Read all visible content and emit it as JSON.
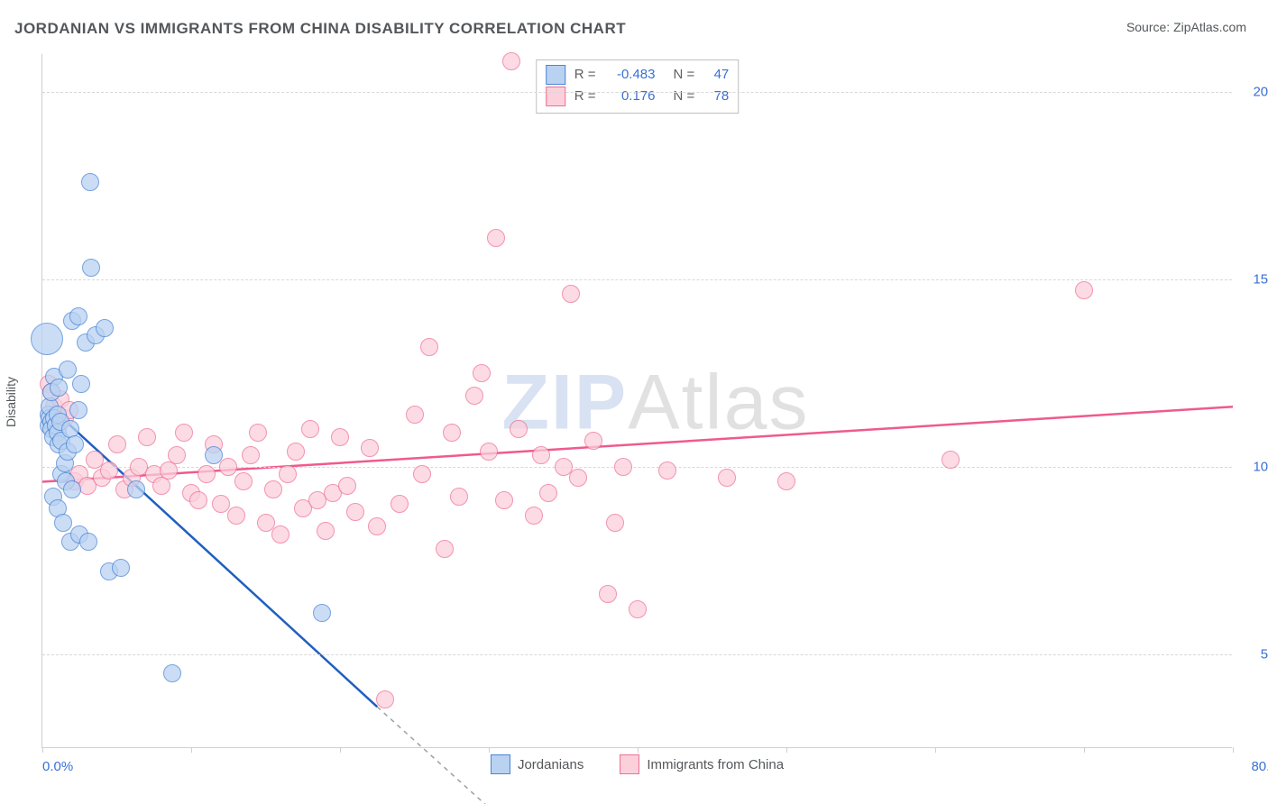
{
  "title": "JORDANIAN VS IMMIGRANTS FROM CHINA DISABILITY CORRELATION CHART",
  "source": "Source: ZipAtlas.com",
  "ylabel": "Disability",
  "watermark": {
    "logo": "ZIP",
    "suffix": "Atlas"
  },
  "axes": {
    "xlim": [
      0,
      80
    ],
    "ylim": [
      2.5,
      21
    ],
    "xtick_positions": [
      0,
      10,
      20,
      30,
      40,
      50,
      60,
      70,
      80
    ],
    "xtick_label_left": "0.0%",
    "xtick_label_right": "80.0%",
    "yticks": [
      {
        "v": 5,
        "label": "5.0%"
      },
      {
        "v": 10,
        "label": "10.0%"
      },
      {
        "v": 15,
        "label": "15.0%"
      },
      {
        "v": 20,
        "label": "20.0%"
      }
    ],
    "grid_color": "#d8d8d8",
    "axis_color": "#cfcfcf",
    "tick_font_color": "#3a6fd8"
  },
  "series": {
    "jordanians": {
      "label": "Jordanians",
      "color_fill": "#b9d2f2",
      "color_stroke": "#4a84d6",
      "color_line": "#1f5fbf",
      "opacity": 0.75,
      "marker_radius": 10,
      "R": "-0.483",
      "N": "47",
      "trend": {
        "x1": 0.5,
        "y1": 11.6,
        "x2": 22.5,
        "y2": 3.6
      },
      "trend_dash": {
        "x1": 22.5,
        "y1": 3.6,
        "x2": 32,
        "y2": 0.2
      },
      "points": [
        {
          "x": 0.3,
          "y": 13.4,
          "r": 18
        },
        {
          "x": 0.4,
          "y": 11.4
        },
        {
          "x": 0.4,
          "y": 11.1
        },
        {
          "x": 0.5,
          "y": 11.3
        },
        {
          "x": 0.6,
          "y": 11.2
        },
        {
          "x": 0.5,
          "y": 11.6
        },
        {
          "x": 0.6,
          "y": 11.0
        },
        {
          "x": 0.7,
          "y": 10.8
        },
        {
          "x": 0.8,
          "y": 11.3
        },
        {
          "x": 0.9,
          "y": 11.1
        },
        {
          "x": 1.0,
          "y": 10.9
        },
        {
          "x": 1.1,
          "y": 10.6
        },
        {
          "x": 1.0,
          "y": 11.4
        },
        {
          "x": 1.2,
          "y": 11.2
        },
        {
          "x": 1.3,
          "y": 10.7
        },
        {
          "x": 1.3,
          "y": 9.8
        },
        {
          "x": 1.5,
          "y": 10.1
        },
        {
          "x": 1.6,
          "y": 9.6
        },
        {
          "x": 1.7,
          "y": 10.4
        },
        {
          "x": 1.9,
          "y": 11.0
        },
        {
          "x": 2.0,
          "y": 9.4
        },
        {
          "x": 2.2,
          "y": 10.6
        },
        {
          "x": 2.4,
          "y": 11.5
        },
        {
          "x": 2.6,
          "y": 12.2
        },
        {
          "x": 2.9,
          "y": 13.3
        },
        {
          "x": 3.6,
          "y": 13.5
        },
        {
          "x": 4.2,
          "y": 13.7
        },
        {
          "x": 2.0,
          "y": 13.9
        },
        {
          "x": 2.4,
          "y": 14.0
        },
        {
          "x": 3.3,
          "y": 15.3
        },
        {
          "x": 3.2,
          "y": 17.6
        },
        {
          "x": 0.8,
          "y": 12.4
        },
        {
          "x": 0.6,
          "y": 12.0
        },
        {
          "x": 1.1,
          "y": 12.1
        },
        {
          "x": 1.7,
          "y": 12.6
        },
        {
          "x": 0.7,
          "y": 9.2
        },
        {
          "x": 1.0,
          "y": 8.9
        },
        {
          "x": 1.4,
          "y": 8.5
        },
        {
          "x": 1.9,
          "y": 8.0
        },
        {
          "x": 2.5,
          "y": 8.2
        },
        {
          "x": 3.1,
          "y": 8.0
        },
        {
          "x": 4.5,
          "y": 7.2
        },
        {
          "x": 5.3,
          "y": 7.3
        },
        {
          "x": 6.3,
          "y": 9.4
        },
        {
          "x": 8.7,
          "y": 4.5
        },
        {
          "x": 11.5,
          "y": 10.3
        },
        {
          "x": 18.8,
          "y": 6.1
        }
      ]
    },
    "immigrants": {
      "label": "Immigrants from China",
      "color_fill": "#fbd0db",
      "color_stroke": "#ef6f95",
      "color_line": "#ef5a8d",
      "opacity": 0.75,
      "marker_radius": 10,
      "R": "0.176",
      "N": "78",
      "trend": {
        "x1": 0,
        "y1": 9.6,
        "x2": 80,
        "y2": 11.6
      },
      "points": [
        {
          "x": 0.4,
          "y": 12.2
        },
        {
          "x": 0.6,
          "y": 12.0
        },
        {
          "x": 0.8,
          "y": 11.6
        },
        {
          "x": 1.2,
          "y": 11.8
        },
        {
          "x": 1.5,
          "y": 11.3
        },
        {
          "x": 1.8,
          "y": 11.5
        },
        {
          "x": 2.2,
          "y": 9.6
        },
        {
          "x": 2.5,
          "y": 9.8
        },
        {
          "x": 3.0,
          "y": 9.5
        },
        {
          "x": 3.5,
          "y": 10.2
        },
        {
          "x": 4.0,
          "y": 9.7
        },
        {
          "x": 4.5,
          "y": 9.9
        },
        {
          "x": 5.0,
          "y": 10.6
        },
        {
          "x": 5.5,
          "y": 9.4
        },
        {
          "x": 6.0,
          "y": 9.7
        },
        {
          "x": 6.5,
          "y": 10.0
        },
        {
          "x": 7.0,
          "y": 10.8
        },
        {
          "x": 7.5,
          "y": 9.8
        },
        {
          "x": 8.0,
          "y": 9.5
        },
        {
          "x": 8.5,
          "y": 9.9
        },
        {
          "x": 9.0,
          "y": 10.3
        },
        {
          "x": 9.5,
          "y": 10.9
        },
        {
          "x": 10.0,
          "y": 9.3
        },
        {
          "x": 10.5,
          "y": 9.1
        },
        {
          "x": 11.0,
          "y": 9.8
        },
        {
          "x": 11.5,
          "y": 10.6
        },
        {
          "x": 12.0,
          "y": 9.0
        },
        {
          "x": 12.5,
          "y": 10.0
        },
        {
          "x": 13.0,
          "y": 8.7
        },
        {
          "x": 13.5,
          "y": 9.6
        },
        {
          "x": 14.0,
          "y": 10.3
        },
        {
          "x": 14.5,
          "y": 10.9
        },
        {
          "x": 15.0,
          "y": 8.5
        },
        {
          "x": 15.5,
          "y": 9.4
        },
        {
          "x": 16.0,
          "y": 8.2
        },
        {
          "x": 16.5,
          "y": 9.8
        },
        {
          "x": 17.0,
          "y": 10.4
        },
        {
          "x": 17.5,
          "y": 8.9
        },
        {
          "x": 18.0,
          "y": 11.0
        },
        {
          "x": 18.5,
          "y": 9.1
        },
        {
          "x": 19.0,
          "y": 8.3
        },
        {
          "x": 19.5,
          "y": 9.3
        },
        {
          "x": 20.0,
          "y": 10.8
        },
        {
          "x": 20.5,
          "y": 9.5
        },
        {
          "x": 21.0,
          "y": 8.8
        },
        {
          "x": 22.0,
          "y": 10.5
        },
        {
          "x": 22.5,
          "y": 8.4
        },
        {
          "x": 23.0,
          "y": 3.8
        },
        {
          "x": 24.0,
          "y": 9.0
        },
        {
          "x": 25.0,
          "y": 11.4
        },
        {
          "x": 25.5,
          "y": 9.8
        },
        {
          "x": 26.0,
          "y": 13.2
        },
        {
          "x": 27.0,
          "y": 7.8
        },
        {
          "x": 27.5,
          "y": 10.9
        },
        {
          "x": 28.0,
          "y": 9.2
        },
        {
          "x": 29.0,
          "y": 11.9
        },
        {
          "x": 29.5,
          "y": 12.5
        },
        {
          "x": 30.0,
          "y": 10.4
        },
        {
          "x": 30.5,
          "y": 16.1
        },
        {
          "x": 31.0,
          "y": 9.1
        },
        {
          "x": 31.5,
          "y": 20.8
        },
        {
          "x": 32.0,
          "y": 11.0
        },
        {
          "x": 33.0,
          "y": 8.7
        },
        {
          "x": 33.5,
          "y": 10.3
        },
        {
          "x": 34.0,
          "y": 9.3
        },
        {
          "x": 35.0,
          "y": 10.0
        },
        {
          "x": 35.5,
          "y": 14.6
        },
        {
          "x": 36.0,
          "y": 9.7
        },
        {
          "x": 37.0,
          "y": 10.7
        },
        {
          "x": 38.0,
          "y": 6.6
        },
        {
          "x": 38.5,
          "y": 8.5
        },
        {
          "x": 39.0,
          "y": 10.0
        },
        {
          "x": 40.0,
          "y": 6.2
        },
        {
          "x": 42.0,
          "y": 9.9
        },
        {
          "x": 46.0,
          "y": 9.7
        },
        {
          "x": 50.0,
          "y": 9.6
        },
        {
          "x": 61.0,
          "y": 10.2
        },
        {
          "x": 70.0,
          "y": 14.7
        }
      ]
    }
  },
  "legend_top": {
    "R_label": "R =",
    "N_label": "N ="
  }
}
